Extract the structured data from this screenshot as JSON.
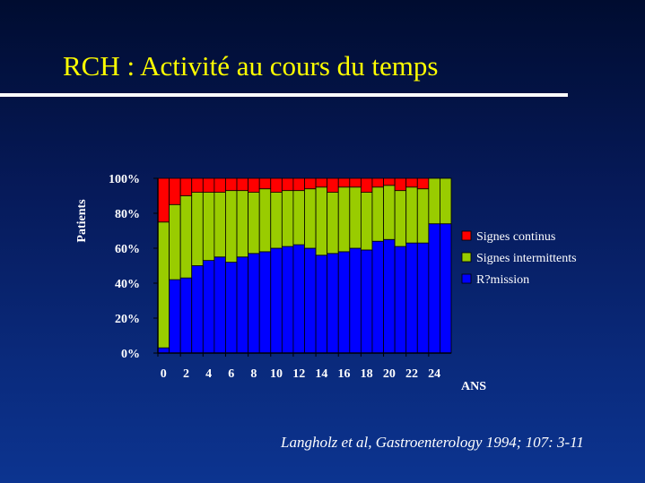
{
  "slide": {
    "title": "RCH : Activité au cours du temps",
    "citation": "Langholz et al, Gastroenterology 1994; 107: 3-11"
  },
  "chart_data": {
    "type": "bar",
    "stacked": true,
    "normalized_percent": true,
    "ylabel": "Patients",
    "xlabel": "ANS",
    "ylim": [
      0,
      100
    ],
    "yticks": [
      "0%",
      "20%",
      "40%",
      "60%",
      "80%",
      "100%"
    ],
    "ytick_values": [
      0,
      20,
      40,
      60,
      80,
      100
    ],
    "categories": [
      0,
      1,
      2,
      3,
      4,
      5,
      6,
      7,
      8,
      9,
      10,
      11,
      12,
      13,
      14,
      15,
      16,
      17,
      18,
      19,
      20,
      21,
      22,
      23,
      24,
      25
    ],
    "xtick_labels": [
      "0",
      "2",
      "4",
      "6",
      "8",
      "10",
      "12",
      "14",
      "16",
      "18",
      "20",
      "22",
      "24"
    ],
    "xtick_positions": [
      0,
      2,
      4,
      6,
      8,
      10,
      12,
      14,
      16,
      18,
      20,
      22,
      24
    ],
    "grid": false,
    "legend_position": "right",
    "series": [
      {
        "name": "R?mission",
        "color": "#0000ff",
        "values": [
          3,
          42,
          43,
          50,
          53,
          55,
          52,
          55,
          57,
          58,
          60,
          61,
          62,
          60,
          56,
          57,
          58,
          60,
          59,
          64,
          65,
          61,
          63,
          63,
          74,
          74
        ]
      },
      {
        "name": "Signes intermittents",
        "color": "#99cc00",
        "values": [
          72,
          43,
          47,
          42,
          39,
          37,
          41,
          38,
          35,
          36,
          32,
          32,
          31,
          34,
          39,
          35,
          37,
          35,
          33,
          31,
          31,
          32,
          32,
          31,
          26,
          26
        ]
      },
      {
        "name": "Signes continus",
        "color": "#ff0000",
        "values": [
          25,
          15,
          10,
          8,
          8,
          8,
          7,
          7,
          8,
          6,
          8,
          7,
          7,
          6,
          5,
          8,
          5,
          5,
          8,
          5,
          4,
          7,
          5,
          6,
          0,
          0
        ]
      }
    ],
    "legend": [
      "Signes continus",
      "Signes intermittents",
      "R?mission"
    ],
    "legend_colors": [
      "#ff0000",
      "#99cc00",
      "#0000ff"
    ]
  }
}
